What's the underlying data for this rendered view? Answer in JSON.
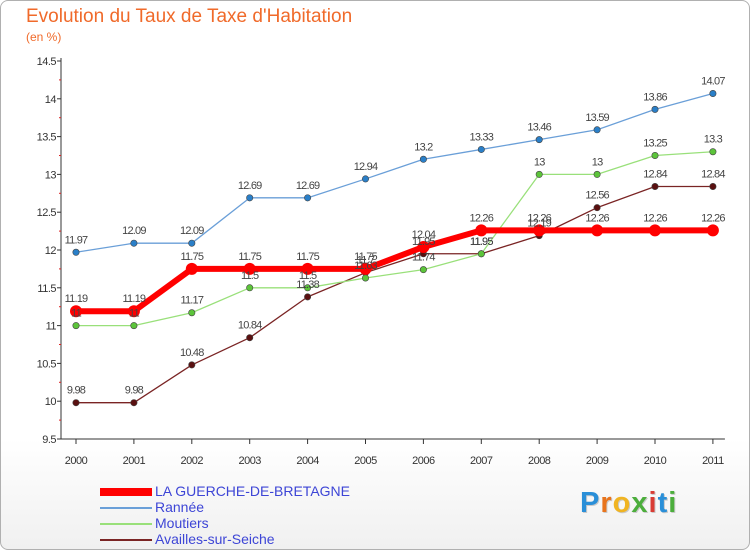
{
  "header": {
    "title": "Evolution du Taux de Taxe d'Habitation",
    "subtitle": "(en %)"
  },
  "brand": {
    "logo_text": "Proxiti",
    "logo_colors": [
      "#2a8fd8",
      "#e8741c",
      "#f0b422",
      "#4cae3c",
      "#d93c34",
      "#2a8fd8",
      "#4cae3c"
    ]
  },
  "chart_data": {
    "type": "line",
    "title": "Evolution du Taux de Taxe d'Habitation",
    "ylabel": "(en %)",
    "xlabel": "",
    "categories": [
      "2000",
      "2001",
      "2002",
      "2003",
      "2004",
      "2005",
      "2006",
      "2007",
      "2008",
      "2009",
      "2010",
      "2011"
    ],
    "ylim": [
      9.5,
      14.5
    ],
    "yticks": [
      "9.5",
      "10",
      "10.5",
      "11",
      "11.5",
      "12",
      "12.5",
      "13",
      "13.5",
      "14",
      "14.5"
    ],
    "grid": false,
    "legend_position": "bottom-left",
    "series": [
      {
        "name": "LA GUERCHE-DE-BRETAGNE",
        "color": "#ff0000",
        "values": [
          11.19,
          11.19,
          11.75,
          11.75,
          11.75,
          11.75,
          12.04,
          12.26,
          12.26,
          12.26,
          12.26,
          12.26
        ],
        "labels": [
          "11.19",
          "11.19",
          "11.75",
          "11.75",
          "11.75",
          "11.75",
          "12.04",
          "12.26",
          "12.26",
          "12.26",
          "12.26",
          "12.26"
        ]
      },
      {
        "name": "Rannée",
        "color": "#6a9fd8",
        "values": [
          11.97,
          12.09,
          12.09,
          12.69,
          12.69,
          12.94,
          13.2,
          13.33,
          13.46,
          13.59,
          13.86,
          14.07
        ],
        "labels": [
          "11.97",
          "12.09",
          "12.09",
          "12.69",
          "12.69",
          "12.94",
          "13.2",
          "13.33",
          "13.46",
          "13.59",
          "13.86",
          "14.07"
        ]
      },
      {
        "name": "Moutiers",
        "color": "#99e07a",
        "values": [
          11,
          11,
          11.17,
          11.5,
          11.5,
          11.63,
          11.74,
          11.95,
          13,
          13,
          13.25,
          13.3
        ],
        "labels": [
          "11",
          "11",
          "11.17",
          "11.5",
          "11.5",
          "11.63",
          "11.74",
          "11.95",
          "13",
          "13",
          "13.25",
          "13.3"
        ]
      },
      {
        "name": "Availles-sur-Seiche",
        "color": "#7a2424",
        "values": [
          9.98,
          9.98,
          10.48,
          10.84,
          11.38,
          11.7,
          11.95,
          11.95,
          12.19,
          12.56,
          12.84,
          12.84
        ],
        "labels": [
          "9.98",
          "9.98",
          "10.48",
          "10.84",
          "11.38",
          "11.7",
          "11.95",
          "11.95",
          "12.19",
          "12.56",
          "12.84",
          "12.84"
        ]
      }
    ]
  }
}
